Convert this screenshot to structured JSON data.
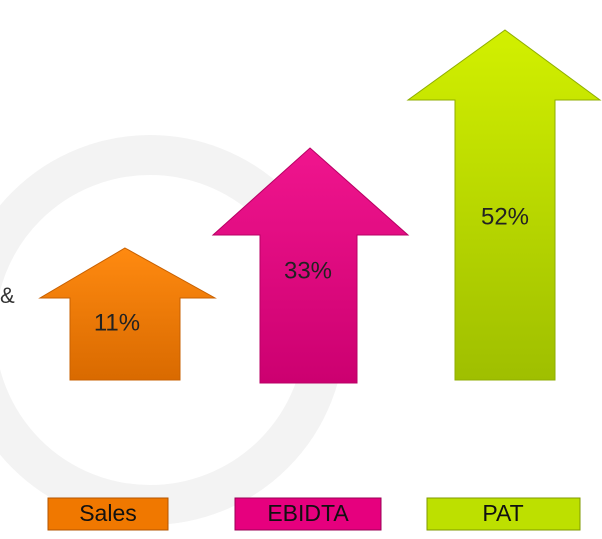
{
  "fragment": "&",
  "items": [
    {
      "label": "Sales",
      "value": "11%"
    },
    {
      "label": "EBIDTA",
      "value": "33%"
    },
    {
      "label": "PAT",
      "value": "52%"
    }
  ]
}
